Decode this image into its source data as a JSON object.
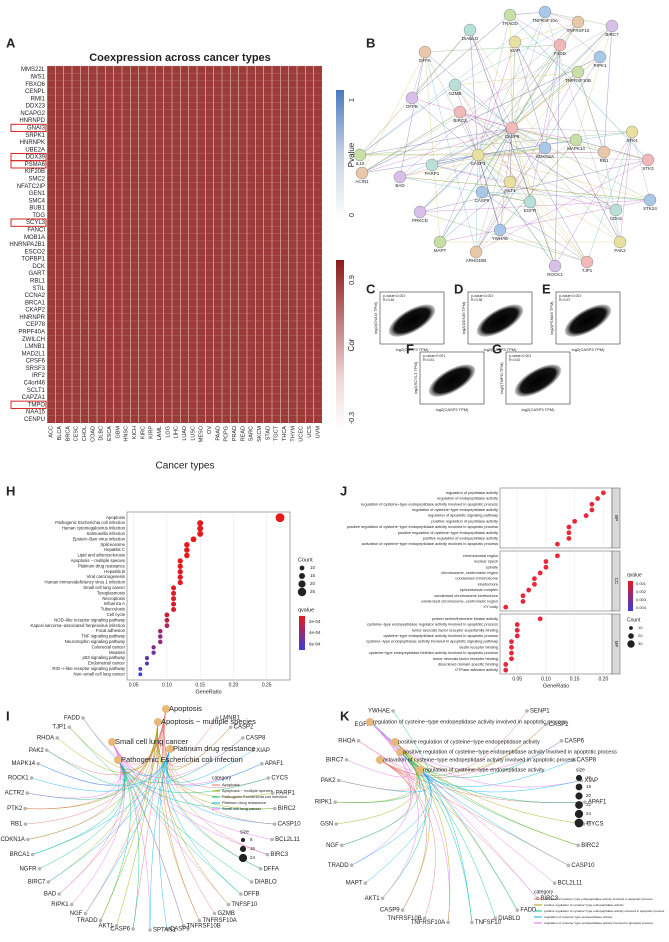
{
  "heatmap": {
    "letter": "A",
    "title": "Coexpression across cancer types",
    "xlabel": "Cancer types",
    "genes": [
      "MMS22L",
      "IWS1",
      "FBXO6",
      "CENPL",
      "RMI1",
      "DDX23",
      "NCAPG2",
      "HNRNPD",
      "GNAI3",
      "SRPK1",
      "HNRNPK",
      "UBE2A",
      "DDX39",
      "PSMA6",
      "KIF20B",
      "SMC2",
      "NFATC2IP",
      "GEN1",
      "SMC4",
      "BUB1",
      "TDG",
      "SCYL3",
      "FANCI",
      "MOB1A",
      "HNRNPA2B1",
      "ESCO2",
      "TOPBP1",
      "DCK",
      "GART",
      "RBL1",
      "STIL",
      "CCNA2",
      "BRCA1",
      "CKAP2",
      "HNRNPR",
      "CEP78",
      "PRPF40A",
      "ZWILCH",
      "LMNB1",
      "MAD2L1",
      "CPSF6",
      "SRSF3",
      "IRF2",
      "C4orf46",
      "SCLT1",
      "CAPZA1",
      "TMPO",
      "NAA15",
      "CENPU"
    ],
    "boxed": [
      8,
      12,
      13,
      21,
      46
    ],
    "cancers": [
      "ACC",
      "BLCA",
      "BRCA",
      "CESC",
      "CHOL",
      "COAD",
      "DLBC",
      "ESCA",
      "GBM",
      "HNSC",
      "KICH",
      "KIRC",
      "KIRP",
      "LAML",
      "LGG",
      "LIHC",
      "LUAD",
      "LUSC",
      "MESO",
      "OV",
      "PAAD",
      "PCPG",
      "PRAD",
      "READ",
      "SARC",
      "SKCM",
      "STAD",
      "TGCT",
      "THCA",
      "THYM",
      "UCEC",
      "UCS",
      "UVM"
    ],
    "pvalue_legend": {
      "title": "Pvalue",
      "ticks": [
        1,
        0
      ]
    },
    "cor_legend": {
      "title": "Cor",
      "ticks": [
        0.9,
        -0.3
      ]
    }
  },
  "network": {
    "letter": "B",
    "nodes": [
      "TNFRSF10A",
      "TRADD",
      "TNFRSF10",
      "BIRC7",
      "DIABLO",
      "XIAP",
      "FADD",
      "RIPK1",
      "TNFRSF10B",
      "DFFA",
      "DFFB",
      "GZMB",
      "STK4",
      "STK3",
      "STK24",
      "IL10",
      "ACIN1",
      "BAD",
      "PARP1",
      "CASP3",
      "CASP8",
      "CDKN1A",
      "MAPK14",
      "RB1",
      "PRKCD",
      "CDH1",
      "PAK2",
      "TJP1",
      "YWHAE",
      "MAPT",
      "ARHGDIB",
      "ROCK1",
      "EGFR",
      "AKT1",
      "BIRC2",
      "CASP9"
    ]
  },
  "scatters": [
    {
      "letter": "C",
      "stats": [
        "p-value<0.001",
        "R=0.46"
      ],
      "xlabel": "log2(CASP3 TPM)",
      "ylabel": "log2(GNAI3 TPM)"
    },
    {
      "letter": "D",
      "stats": [
        "p-value<0.001",
        "R=0.38"
      ],
      "xlabel": "log2(CASP3 TPM)",
      "ylabel": "log2(DDX39 TPM)"
    },
    {
      "letter": "E",
      "stats": [
        "p-value<0.001",
        "R=0.57"
      ],
      "xlabel": "log2(CASP3 TPM)",
      "ylabel": "log2(PSMA6 TPM)"
    },
    {
      "letter": "F",
      "stats": [
        "p-value<0.001",
        "R=0.51"
      ],
      "xlabel": "log2(CASP3 TPM)",
      "ylabel": "log2(SCYL3 TPM)"
    },
    {
      "letter": "G",
      "stats": [
        "p-value<0.001",
        "R=0.62"
      ],
      "xlabel": "log2(CASP3 TPM)",
      "ylabel": "log2(TMPO TPM)"
    }
  ],
  "kegg": {
    "letter": "H",
    "type": "dot",
    "xlabel": "GeneRatio",
    "terms": [
      "Apoptosis",
      "Pathogenic Escherichia coli infection",
      "Human cytomegalovirus infection",
      "Salmonella infection",
      "Epstein−Barr virus infection",
      "Spliceosome",
      "Hepatitis C",
      "Lipid and atherosclerosis",
      "Apoptosis − multiple species",
      "Platinum drug resistance",
      "Hepatitis B",
      "Viral carcinogenesis",
      "Human immunodeficiency virus 1 infection",
      "Small cell lung cancer",
      "Toxoplasmosis",
      "Necroptosis",
      "Influenza A",
      "Tuberculosis",
      "Cell cycle",
      "NOD−like receptor signaling pathway",
      "Kaposi sarcoma−associated herpesvirus infection",
      "Focal adhesion",
      "TNF signaling pathway",
      "Neurotrophin signaling pathway",
      "Colorectal cancer",
      "Measles",
      "p53 signaling pathway",
      "Endometrial cancer",
      "RIG−I−like receptor signaling pathway",
      "Non−small cell lung cancer"
    ],
    "values": [
      0.27,
      0.15,
      0.15,
      0.15,
      0.14,
      0.13,
      0.13,
      0.13,
      0.12,
      0.12,
      0.12,
      0.12,
      0.12,
      0.11,
      0.11,
      0.11,
      0.11,
      0.11,
      0.1,
      0.1,
      0.1,
      0.09,
      0.09,
      0.09,
      0.08,
      0.08,
      0.07,
      0.07,
      0.06,
      0.06
    ],
    "counts": [
      27,
      15,
      15,
      15,
      14,
      13,
      13,
      13,
      12,
      12,
      12,
      12,
      12,
      11,
      11,
      11,
      11,
      11,
      10,
      10,
      10,
      9,
      9,
      9,
      8,
      8,
      7,
      7,
      6,
      6
    ],
    "qvalues": [
      0.0001,
      0.0001,
      0.0001,
      0.0001,
      0.0001,
      0.0001,
      0.0001,
      0.0001,
      0.0001,
      0.0001,
      0.00012,
      0.00012,
      0.00013,
      0.00013,
      0.00014,
      0.00014,
      0.00015,
      0.00016,
      0.00018,
      0.00025,
      0.0003,
      0.00035,
      0.0004,
      0.0004,
      0.00045,
      0.0005,
      0.00055,
      0.0006,
      0.00065,
      0.0007
    ],
    "xlim": [
      0.04,
      0.285
    ],
    "xticks": [
      {
        "value": 0.05,
        "label": "0.05"
      },
      {
        "value": 0.1,
        "label": "0.10"
      },
      {
        "value": 0.15,
        "label": "0.15"
      },
      {
        "value": 0.2,
        "label": "0.20"
      },
      {
        "value": 0.25,
        "label": "0.25"
      }
    ],
    "count_legend": {
      "title": "Count",
      "ticks": [
        10,
        15,
        20,
        25
      ]
    },
    "qvalue_legend": {
      "title": "qvalue",
      "lim": [
        0.0001,
        0.0007
      ],
      "ticks": [
        {
          "value": 0.0002,
          "label": "2e-04"
        },
        {
          "value": 0.0004,
          "label": "4e-04"
        },
        {
          "value": 0.0006,
          "label": "6e-04"
        }
      ]
    }
  },
  "go": {
    "letter": "J",
    "type": "dot",
    "xlabel": "GeneRatio",
    "color": "#e8283a",
    "groups": [
      {
        "name": "BP",
        "terms": [
          "regulation of peptidase activity",
          "regulation of endopeptidase activity",
          "regulation of cysteine−type endopeptidase activity involved in apoptotic process",
          "regulation of cysteine−type endopeptidase activity",
          "regulation of apoptotic signaling pathway",
          "positive regulation of peptidase activity",
          "positive regulation of cysteine−type endopeptidase activity involved in apoptotic process",
          "positive regulation of cysteine−type endopeptidase activity",
          "positive regulation of endopeptidase activity",
          "activation of cysteine−type endopeptidase activity involved in apoptotic process"
        ],
        "values": [
          0.2,
          0.19,
          0.18,
          0.18,
          0.17,
          0.15,
          0.14,
          0.14,
          0.14,
          0.12
        ]
      },
      {
        "name": "CC",
        "terms": [
          "chromosomal region",
          "nuclear speck",
          "spindle",
          "chromosome, centromeric region",
          "condensed chromosome",
          "kinetochore",
          "spliceosomal complex",
          "condensed chromosome kinetochore",
          "condensed chromosome, centromeric region",
          "XY body"
        ],
        "values": [
          0.12,
          0.1,
          0.1,
          0.09,
          0.08,
          0.08,
          0.07,
          0.06,
          0.06,
          0.03
        ]
      },
      {
        "name": "MF",
        "terms": [
          "protein serine/threonine kinase activity",
          "cysteine−type endopeptidase regulator activity involved in apoptotic process",
          "tumor necrosis factor receptor superfamily binding",
          "cysteine−type endopeptidase activity involved in apoptotic process",
          "cysteine−type endopeptidase activity involved in apoptotic signaling pathway",
          "death receptor binding",
          "cysteine−type endopeptidase inhibitor activity involved in apoptotic process",
          "tumor necrosis factor receptor binding",
          "disordered domain specific binding",
          "GTPase activator activity"
        ],
        "values": [
          0.09,
          0.05,
          0.05,
          0.05,
          0.04,
          0.04,
          0.04,
          0.04,
          0.03,
          0.03
        ]
      }
    ],
    "xlim": [
      0.02,
      0.215
    ],
    "xticks": [
      {
        "value": 0.05,
        "label": "0.05"
      },
      {
        "value": 0.1,
        "label": "0.10"
      },
      {
        "value": 0.15,
        "label": "0.15"
      },
      {
        "value": 0.2,
        "label": "0.20"
      }
    ],
    "qvalue_legend": {
      "title": "qvalue",
      "ticks": [
        0.001,
        0.002,
        0.003,
        0.004
      ]
    },
    "count_legend": {
      "title": "Count",
      "ticks": [
        10,
        20,
        30
      ]
    }
  },
  "cnet_kegg": {
    "letter": "I",
    "legend_title": "category",
    "size_title": "size",
    "size_ticks": [
      8,
      16,
      24
    ],
    "categories": [
      {
        "name": "Apoptosis",
        "color": "#e0766f"
      },
      {
        "name": "Apoptosis − multiple species",
        "color": "#a3a500"
      },
      {
        "name": "Pathogenic Escherichia coli infection",
        "color": "#00bf7d"
      },
      {
        "name": "Platinum drug resistance",
        "color": "#00b0f6"
      },
      {
        "name": "Small cell lung cancer",
        "color": "#e76bf3"
      }
    ],
    "genes": [
      "LMNB1",
      "CASP2",
      "CASP8",
      "XIAP",
      "APAF1",
      "CYCS",
      "PARP1",
      "BIRC2",
      "CASP10",
      "BCL2L11",
      "BIRC3",
      "DFFA",
      "DIABLO",
      "DFFB",
      "TNFSF10",
      "GZMB",
      "TNFRSF10A",
      "TNFRSF10B",
      "CASP9",
      "SPTAN1",
      "CASP6",
      "AKT1",
      "TRADD",
      "NGF",
      "RIPK1",
      "BAD",
      "BIRC7",
      "NGFR",
      "BRCA1",
      "CDKN1A",
      "RB1",
      "PTK2",
      "ACTR2",
      "ROCK1",
      "MAPK14",
      "PAK2",
      "RHOA",
      "TJP1",
      "FADD"
    ]
  },
  "cnet_go": {
    "letter": "K",
    "legend_title": "category",
    "size_title": "size",
    "size_ticks": [
      16,
      18,
      20,
      22,
      24,
      26
    ],
    "categories": [
      {
        "name": "activation of cysteine−type endopeptidase activity involved in apoptotic process",
        "color": "#e0766f"
      },
      {
        "name": "positive regulation of cysteine−type endopeptidase activity",
        "color": "#a3a500"
      },
      {
        "name": "positive regulation of cysteine−type endopeptidase activity involved in apoptotic process",
        "color": "#00bf7d"
      },
      {
        "name": "regulation of cysteine−type endopeptidase activity",
        "color": "#00b0f6"
      },
      {
        "name": "regulation of cysteine−type endopeptidase activity involved in apoptotic process",
        "color": "#e76bf3"
      }
    ],
    "genes": [
      "SENP1",
      "CASP2",
      "CASP6",
      "CASP8",
      "XIAP",
      "APAF1",
      "CYCS",
      "BIRC2",
      "CASP10",
      "BCL2L11",
      "BIRC3",
      "FADD",
      "DIABLO",
      "TNFSF10",
      "TNFRSF10A",
      "TNFRSF10B",
      "CASP9",
      "AKT1",
      "MAPT",
      "TRADD",
      "NGF",
      "GSN",
      "RIPK1",
      "PAK2",
      "BIRC7",
      "RHOA",
      "EGFR",
      "YWHAE"
    ]
  }
}
